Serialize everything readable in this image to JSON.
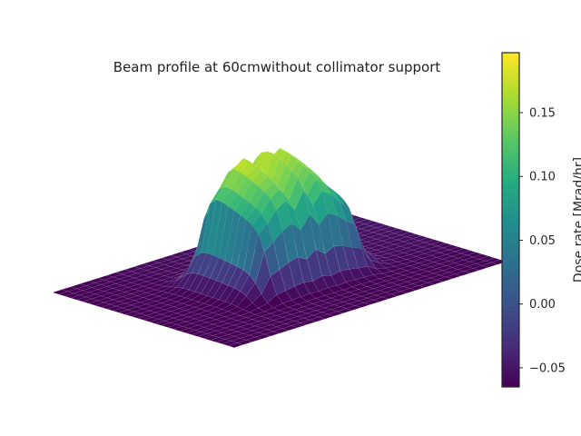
{
  "chart_data": {
    "type": "surface3d",
    "title": "Beam profile at 60cmwithout collimator support",
    "xlabel": "",
    "ylabel": "",
    "colorbar": {
      "label": "Dose rate [Mrad/hr]",
      "ticks": [
        -0.05,
        0.0,
        0.05,
        0.1,
        0.15
      ],
      "tick_labels": [
        "−0.05",
        "0.00",
        "0.05",
        "0.10",
        "0.15"
      ],
      "range": [
        -0.065,
        0.197
      ]
    },
    "colormap": "viridis",
    "surface": {
      "peak_dose": 0.19,
      "floor_dose": -0.065,
      "plateau_extent": [
        -0.4,
        0.4
      ],
      "ripple_count": 5,
      "grid_size": 30
    },
    "axes_visible": false
  }
}
